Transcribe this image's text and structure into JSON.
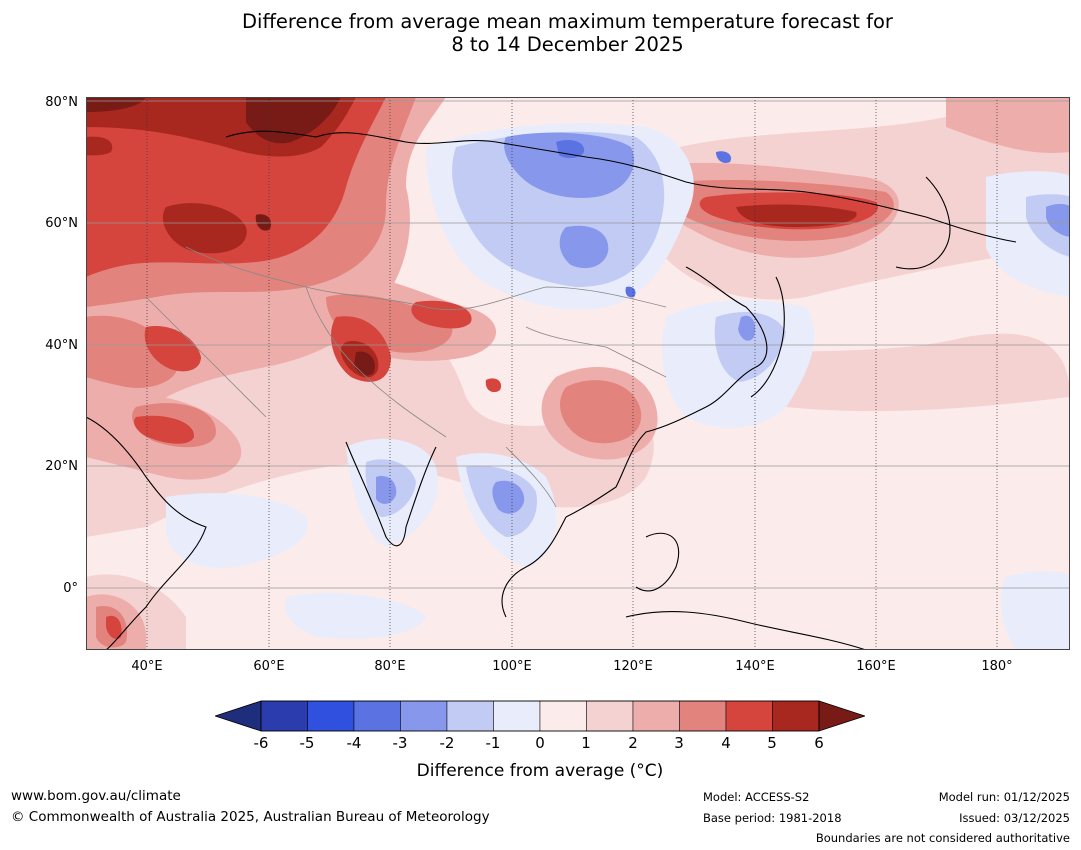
{
  "title": {
    "line1": "Difference from average mean maximum temperature forecast for",
    "line2": "8 to 14 December 2025"
  },
  "map": {
    "lat_labels": [
      "80°N",
      "60°N",
      "40°N",
      "20°N",
      "0°"
    ],
    "lon_labels": [
      "40°E",
      "60°E",
      "80°E",
      "100°E",
      "120°E",
      "140°E",
      "160°E",
      "180°"
    ],
    "colors": {
      "ocean_base": "#fcebeb",
      "neg_6": "#1e2d7c",
      "neg_5": "#2a3cae",
      "neg_4": "#3050e0",
      "neg_3": "#5b72e2",
      "neg_2": "#8798ec",
      "neg_1": "#c2cbf4",
      "neg_0": "#e8ecfb",
      "pos_0": "#fcebeb",
      "pos_1": "#f5d2d2",
      "pos_2": "#edaeab",
      "pos_3": "#e3837e",
      "pos_4": "#d5443d",
      "pos_5": "#a8271f",
      "pos_6": "#781b16"
    }
  },
  "colorbar": {
    "ticks": [
      "-6",
      "-5",
      "-4",
      "-3",
      "-2",
      "-1",
      "0",
      "1",
      "2",
      "3",
      "4",
      "5",
      "6"
    ],
    "label": "Difference from average (°C)",
    "colors": [
      "#2a3cae",
      "#3050e0",
      "#5b72e2",
      "#8798ec",
      "#c2cbf4",
      "#e8ecfb",
      "#fcebeb",
      "#f5d2d2",
      "#edaeab",
      "#e3837e",
      "#d5443d",
      "#a8271f"
    ],
    "low_extend_color": "#1e2d7c",
    "high_extend_color": "#781b16"
  },
  "footer": {
    "website": "www.bom.gov.au/climate",
    "copyright": "© Commonwealth of Australia 2025, Australian Bureau of Meteorology",
    "model": "Model: ACCESS-S2",
    "base_period": "Base period: 1981-2018",
    "model_run": "Model run: 01/12/2025",
    "issued": "Issued: 03/12/2025",
    "disclaimer": "Boundaries are not considered authoritative"
  }
}
